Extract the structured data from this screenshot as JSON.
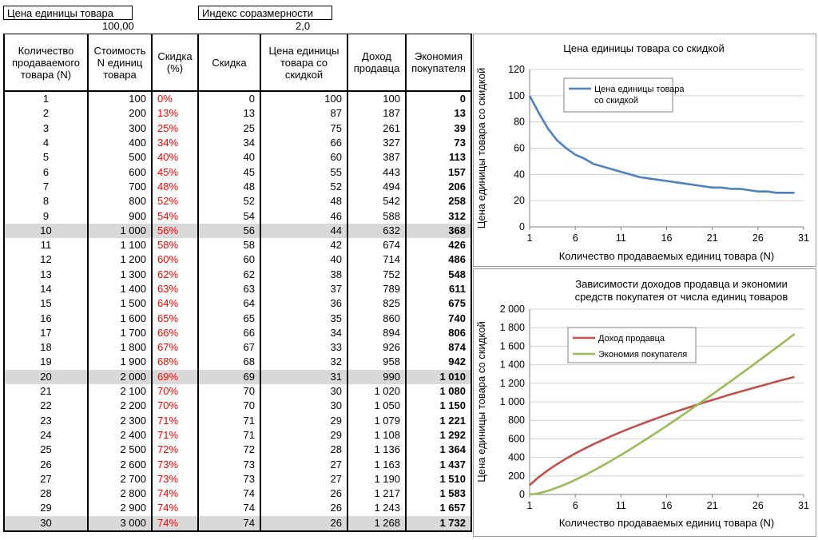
{
  "header": {
    "unit_price_label": "Цена единицы товара",
    "unit_price_value": "100,00",
    "index_label": "Индекс соразмерности",
    "index_value": "2,0"
  },
  "table": {
    "columns": [
      "Количество продаваемого товара (N)",
      "Стоимость N единиц товара",
      "Скидка (%)",
      "Скидка",
      "Цена единицы товара со скидкой",
      "Доход продавца",
      "Экономия покупателя"
    ],
    "rows": [
      [
        "1",
        "100",
        "0%",
        "0",
        "100",
        "100",
        "0"
      ],
      [
        "2",
        "200",
        "13%",
        "13",
        "87",
        "187",
        "13"
      ],
      [
        "3",
        "300",
        "25%",
        "25",
        "75",
        "261",
        "39"
      ],
      [
        "4",
        "400",
        "34%",
        "34",
        "66",
        "327",
        "73"
      ],
      [
        "5",
        "500",
        "40%",
        "40",
        "60",
        "387",
        "113"
      ],
      [
        "6",
        "600",
        "45%",
        "45",
        "55",
        "443",
        "157"
      ],
      [
        "7",
        "700",
        "48%",
        "48",
        "52",
        "494",
        "206"
      ],
      [
        "8",
        "800",
        "52%",
        "52",
        "48",
        "542",
        "258"
      ],
      [
        "9",
        "900",
        "54%",
        "54",
        "46",
        "588",
        "312"
      ],
      [
        "10",
        "1 000",
        "56%",
        "56",
        "44",
        "632",
        "368"
      ],
      [
        "11",
        "1 100",
        "58%",
        "58",
        "42",
        "674",
        "426"
      ],
      [
        "12",
        "1 200",
        "60%",
        "60",
        "40",
        "714",
        "486"
      ],
      [
        "13",
        "1 300",
        "62%",
        "62",
        "38",
        "752",
        "548"
      ],
      [
        "14",
        "1 400",
        "63%",
        "63",
        "37",
        "789",
        "611"
      ],
      [
        "15",
        "1 500",
        "64%",
        "64",
        "36",
        "825",
        "675"
      ],
      [
        "16",
        "1 600",
        "65%",
        "65",
        "35",
        "860",
        "740"
      ],
      [
        "17",
        "1 700",
        "66%",
        "66",
        "34",
        "894",
        "806"
      ],
      [
        "18",
        "1 800",
        "67%",
        "67",
        "33",
        "926",
        "874"
      ],
      [
        "19",
        "1 900",
        "68%",
        "68",
        "32",
        "958",
        "942"
      ],
      [
        "20",
        "2 000",
        "69%",
        "69",
        "31",
        "990",
        "1 010"
      ],
      [
        "21",
        "2 100",
        "70%",
        "70",
        "30",
        "1 020",
        "1 080"
      ],
      [
        "22",
        "2 200",
        "70%",
        "70",
        "30",
        "1 050",
        "1 150"
      ],
      [
        "23",
        "2 300",
        "71%",
        "71",
        "29",
        "1 079",
        "1 221"
      ],
      [
        "24",
        "2 400",
        "71%",
        "71",
        "29",
        "1 108",
        "1 292"
      ],
      [
        "25",
        "2 500",
        "72%",
        "72",
        "28",
        "1 136",
        "1 364"
      ],
      [
        "26",
        "2 600",
        "73%",
        "73",
        "27",
        "1 163",
        "1 437"
      ],
      [
        "27",
        "2 700",
        "73%",
        "73",
        "27",
        "1 190",
        "1 510"
      ],
      [
        "28",
        "2 800",
        "74%",
        "74",
        "26",
        "1 217",
        "1 583"
      ],
      [
        "29",
        "2 900",
        "74%",
        "74",
        "26",
        "1 243",
        "1 657"
      ],
      [
        "30",
        "3 000",
        "74%",
        "74",
        "26",
        "1 268",
        "1 732"
      ]
    ],
    "highlighted_rows": [
      10,
      20,
      30
    ],
    "colors": {
      "discount_pct": "#ff0000",
      "highlight_row": "#d9d9d9"
    }
  },
  "chart_data": [
    {
      "type": "line",
      "title": "Цена единицы товара со скидкой",
      "xlabel": "Количество продаваемых единиц товара (N)",
      "ylabel": "Цена единицы товара со скидкой",
      "x": [
        1,
        2,
        3,
        4,
        5,
        6,
        7,
        8,
        9,
        10,
        11,
        12,
        13,
        14,
        15,
        16,
        17,
        18,
        19,
        20,
        21,
        22,
        23,
        24,
        25,
        26,
        27,
        28,
        29,
        30
      ],
      "xticks": [
        1,
        6,
        11,
        16,
        21,
        26,
        31
      ],
      "xticklabels": [
        "1",
        "6",
        "11",
        "16",
        "21",
        "26",
        "31"
      ],
      "xlim": [
        1,
        31
      ],
      "ylim": [
        0,
        120
      ],
      "yticks": [
        0,
        20,
        40,
        60,
        80,
        100,
        120
      ],
      "yticklabels": [
        "0",
        "20",
        "40",
        "60",
        "80",
        "100",
        "120"
      ],
      "grid": true,
      "legend": "top-left",
      "series": [
        {
          "name": "Цена единицы товара со скидкой",
          "color": "#4f81bd",
          "values": [
            100,
            87,
            75,
            66,
            60,
            55,
            52,
            48,
            46,
            44,
            42,
            40,
            38,
            37,
            36,
            35,
            34,
            33,
            32,
            31,
            30,
            30,
            29,
            29,
            28,
            27,
            27,
            26,
            26,
            26
          ]
        }
      ]
    },
    {
      "type": "line",
      "title": "Зависимости доходов продавца и экономии средств покупатея от числа единиц товаров",
      "title_lines": [
        "Зависимости доходов продавца и экономии",
        "средств покупатея от числа единиц товаров"
      ],
      "xlabel": "Количество продаваемых единиц товара (N)",
      "ylabel": "Цена единицы товара со скидкой",
      "x": [
        1,
        2,
        3,
        4,
        5,
        6,
        7,
        8,
        9,
        10,
        11,
        12,
        13,
        14,
        15,
        16,
        17,
        18,
        19,
        20,
        21,
        22,
        23,
        24,
        25,
        26,
        27,
        28,
        29,
        30
      ],
      "xticks": [
        1,
        6,
        11,
        16,
        21,
        26,
        31
      ],
      "xticklabels": [
        "1",
        "6",
        "11",
        "16",
        "21",
        "26",
        "31"
      ],
      "xlim": [
        1,
        31
      ],
      "ylim": [
        0,
        2000
      ],
      "yticks": [
        0,
        200,
        400,
        600,
        800,
        1000,
        1200,
        1400,
        1600,
        1800,
        2000
      ],
      "yticklabels": [
        "0",
        "200",
        "400",
        "600",
        "800",
        "1 000",
        "1 200",
        "1 400",
        "1 600",
        "1 800",
        "2 000"
      ],
      "grid": true,
      "legend": "top-left",
      "series": [
        {
          "name": "Доход продавца",
          "color": "#c0504d",
          "values": [
            100,
            187,
            261,
            327,
            387,
            443,
            494,
            542,
            588,
            632,
            674,
            714,
            752,
            789,
            825,
            860,
            894,
            926,
            958,
            990,
            1020,
            1050,
            1079,
            1108,
            1136,
            1163,
            1190,
            1217,
            1243,
            1268
          ]
        },
        {
          "name": "Экономия покупателя",
          "color": "#9bbb59",
          "values": [
            0,
            13,
            39,
            73,
            113,
            157,
            206,
            258,
            312,
            368,
            426,
            486,
            548,
            611,
            675,
            740,
            806,
            874,
            942,
            1010,
            1080,
            1150,
            1221,
            1292,
            1364,
            1437,
            1510,
            1583,
            1657,
            1732
          ]
        }
      ]
    }
  ]
}
